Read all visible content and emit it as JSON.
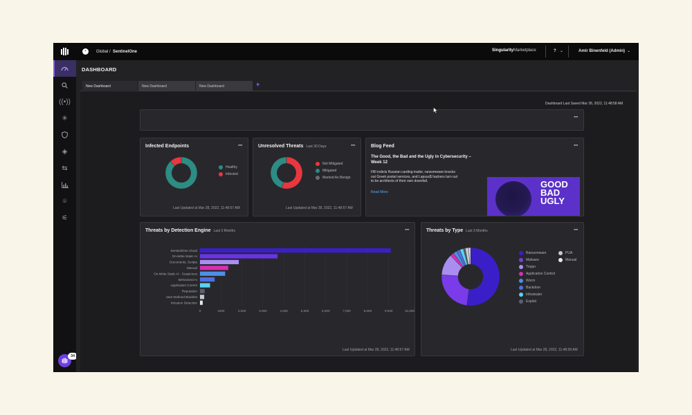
{
  "topbar": {
    "breadcrumb_scope": "Global",
    "breadcrumb_sep": "/",
    "breadcrumb_site": "SentinelOne",
    "marketplace_bold": "Singularity",
    "marketplace_light": "Marketplace",
    "help": "?",
    "user": "Amir Binenfeld (Admin)"
  },
  "sidebar": {
    "items": [
      "dashboard-icon",
      "search-icon",
      "sentinels-icon",
      "sparkle-icon",
      "shield-icon",
      "diamond-icon",
      "exchange-icon",
      "chart-icon",
      "badge-icon",
      "sliders-icon"
    ],
    "notification_count": "34"
  },
  "page": {
    "title": "DASHBOARD"
  },
  "tabs": [
    "New Dashboard",
    "New Dashboard",
    "New Dashboard"
  ],
  "add_tab": "+",
  "last_saved": "Dashboard Last Saved Mar 28, 2022, 11:48:58 AM",
  "header_buttons": {
    "add": "+",
    "more": "···"
  },
  "more": "···",
  "infected": {
    "title": "Infected Endpoints",
    "legend": [
      "Healthy",
      "Infected"
    ],
    "updated": "Last Updated at Mar 28, 2022, 11:48:57 AM"
  },
  "unresolved": {
    "title": "Unresolved Threats",
    "subtitle": "Last 30 Days",
    "legend": [
      "Not Mitigated",
      "Mitigated",
      "Marked As Benign"
    ],
    "updated": "Last Updated at Mar 28, 2022, 11:48:57 AM"
  },
  "blog": {
    "title": "Blog Feed",
    "headline": "The Good, the Bad and the Ugly in Cybersecurity – Week 12",
    "body": "FBI indicts Russian carding trader, ransomware knocks out Greek postal services, and Lapsus$ hackers turn out to be architects of their own downfall.",
    "read_more": "Read More",
    "image_words": [
      "GOOD",
      "BAD",
      "UGLY"
    ]
  },
  "engine": {
    "title": "Threats by Detection Engine",
    "subtitle": "Last 3 Months",
    "updated": "Last Updated at Mar 28, 2022, 11:48:57 AM"
  },
  "bytype": {
    "title": "Threats by Type",
    "subtitle": "Last 3 Months",
    "updated": "Last Updated at Mar 28, 2022, 11:48:58 AM"
  },
  "chart_data": [
    {
      "type": "pie",
      "name": "infected-endpoints",
      "categories": [
        "Healthy",
        "Infected"
      ],
      "values": [
        88,
        12
      ],
      "colors": [
        "#2d8c84",
        "#e8373f"
      ],
      "donut": true
    },
    {
      "type": "pie",
      "name": "unresolved-threats",
      "categories": [
        "Not Mitigated",
        "Mitigated",
        "Marked As Benign"
      ],
      "values": [
        55,
        45,
        0
      ],
      "colors": [
        "#e8373f",
        "#2d8c84",
        "#6b6b72"
      ],
      "donut": true
    },
    {
      "type": "bar",
      "orientation": "horizontal",
      "name": "threats-by-detection-engine",
      "categories": [
        "SentinelOne Cloud",
        "On-Write Static AI",
        "Documents, Scripts",
        "Manual",
        "On-Write Static AI - Suspicious",
        "Behavioral AI",
        "Application Control",
        "Reputation",
        "User-Defined Blacklist",
        "Intrusion Detection"
      ],
      "values": [
        9100,
        3700,
        1850,
        1350,
        1200,
        700,
        480,
        220,
        200,
        130
      ],
      "colors": [
        "#3a1fc9",
        "#6a33e6",
        "#a98ef0",
        "#d62fb4",
        "#4f8fe6",
        "#4f6fe0",
        "#59d4f0",
        "#5a6272",
        "#c7c9cf",
        "#e8e8ec"
      ],
      "xticks": [
        "0",
        "1000",
        "2,000",
        "3,000",
        "4,000",
        "5,000",
        "6,000",
        "7,000",
        "8,000",
        "9,000",
        "10,000"
      ],
      "xlim": [
        0,
        10000
      ]
    },
    {
      "type": "pie",
      "name": "threats-by-type",
      "categories": [
        "Ransomware",
        "Malware",
        "Trojan",
        "Application Control",
        "Worm",
        "Backdoor",
        "Infostealer",
        "Exploit",
        "PUA",
        "Manual"
      ],
      "values": [
        52,
        24,
        12,
        2,
        2,
        2,
        2,
        1,
        2,
        1
      ],
      "colors": [
        "#3a1fc9",
        "#7a3be8",
        "#a98ef0",
        "#d62fb4",
        "#4f8fe6",
        "#4f6fe0",
        "#59d4f0",
        "#5a6272",
        "#c7c9cf",
        "#e8e8ec"
      ],
      "legend_labels": [
        "Ransomware",
        "Malware",
        "Trojan",
        "Application Control",
        "Worm",
        "Backdoor",
        "Infostealer",
        "Exploit",
        "PUA",
        "Manual"
      ],
      "donut": true
    }
  ]
}
